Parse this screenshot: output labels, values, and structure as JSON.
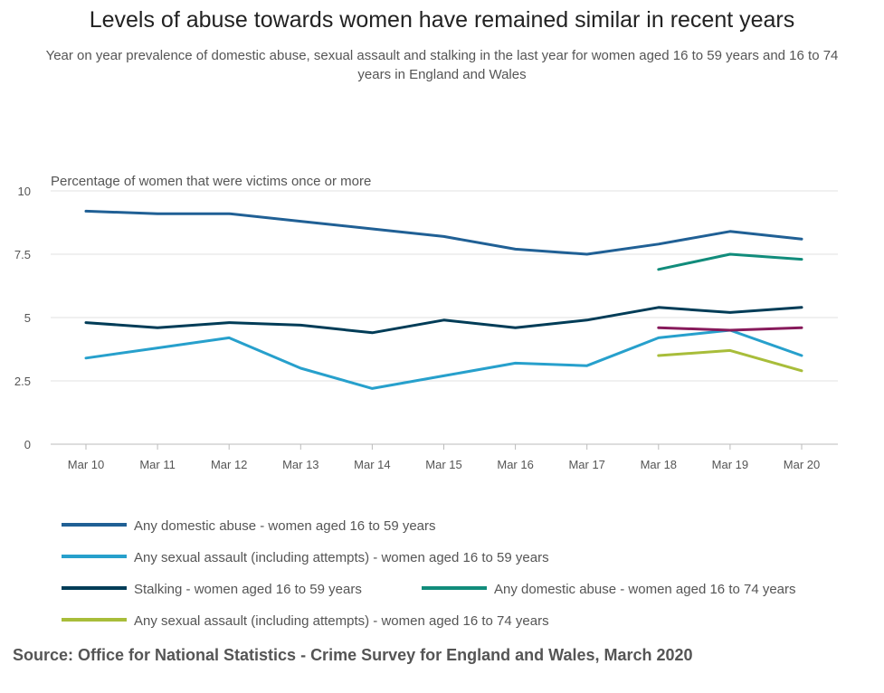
{
  "title": "Levels of abuse towards women have remained similar in recent years",
  "subtitle": "Year on year prevalence of domestic abuse, sexual assault and stalking in the last year for women aged 16 to 59 years and 16 to 74 years in England and Wales",
  "source": "Source: Office for National Statistics - Crime Survey for England and Wales, March 2020",
  "chart_data": {
    "type": "line",
    "ylabel": "Percentage of women that were victims once or more",
    "ylim": [
      0,
      10
    ],
    "yticks": [
      0,
      2.5,
      5,
      7.5,
      10
    ],
    "ytick_labels": [
      "0",
      "2.5",
      "5",
      "7.5",
      "10"
    ],
    "grid": true,
    "legend_position": "bottom",
    "categories": [
      "Mar 10",
      "Mar 11",
      "Mar 12",
      "Mar 13",
      "Mar 14",
      "Mar 15",
      "Mar 16",
      "Mar 17",
      "Mar 18",
      "Mar 19",
      "Mar 20"
    ],
    "series": [
      {
        "name": "Any domestic abuse - women aged 16 to 59 years",
        "color": "#206095",
        "values": [
          9.2,
          9.1,
          9.1,
          8.8,
          8.5,
          8.2,
          7.7,
          7.5,
          7.9,
          8.4,
          8.1
        ]
      },
      {
        "name": "Any sexual assault (including attempts) - women aged 16 to 59 years",
        "color": "#27a0cc",
        "values": [
          3.4,
          3.8,
          4.2,
          3.0,
          2.2,
          2.7,
          3.2,
          3.1,
          4.2,
          4.5,
          3.5
        ]
      },
      {
        "name": "Stalking - women aged 16 to 59 years",
        "color": "#003c57",
        "values": [
          4.8,
          4.6,
          4.8,
          4.7,
          4.4,
          4.9,
          4.6,
          4.9,
          5.4,
          5.2,
          5.4
        ]
      },
      {
        "name": "Any domestic abuse - women aged 16 to 74 years",
        "color": "#118c7b",
        "values": [
          null,
          null,
          null,
          null,
          null,
          null,
          null,
          null,
          6.9,
          7.5,
          7.3
        ]
      },
      {
        "name": "",
        "color": "#871a5b",
        "values": [
          null,
          null,
          null,
          null,
          null,
          null,
          null,
          null,
          4.6,
          4.5,
          4.6
        ]
      },
      {
        "name": "Any sexual assault (including attempts) - women aged 16 to 74 years",
        "color": "#a8bd3a",
        "values": [
          null,
          null,
          null,
          null,
          null,
          null,
          null,
          null,
          3.5,
          3.7,
          2.9
        ]
      }
    ]
  }
}
